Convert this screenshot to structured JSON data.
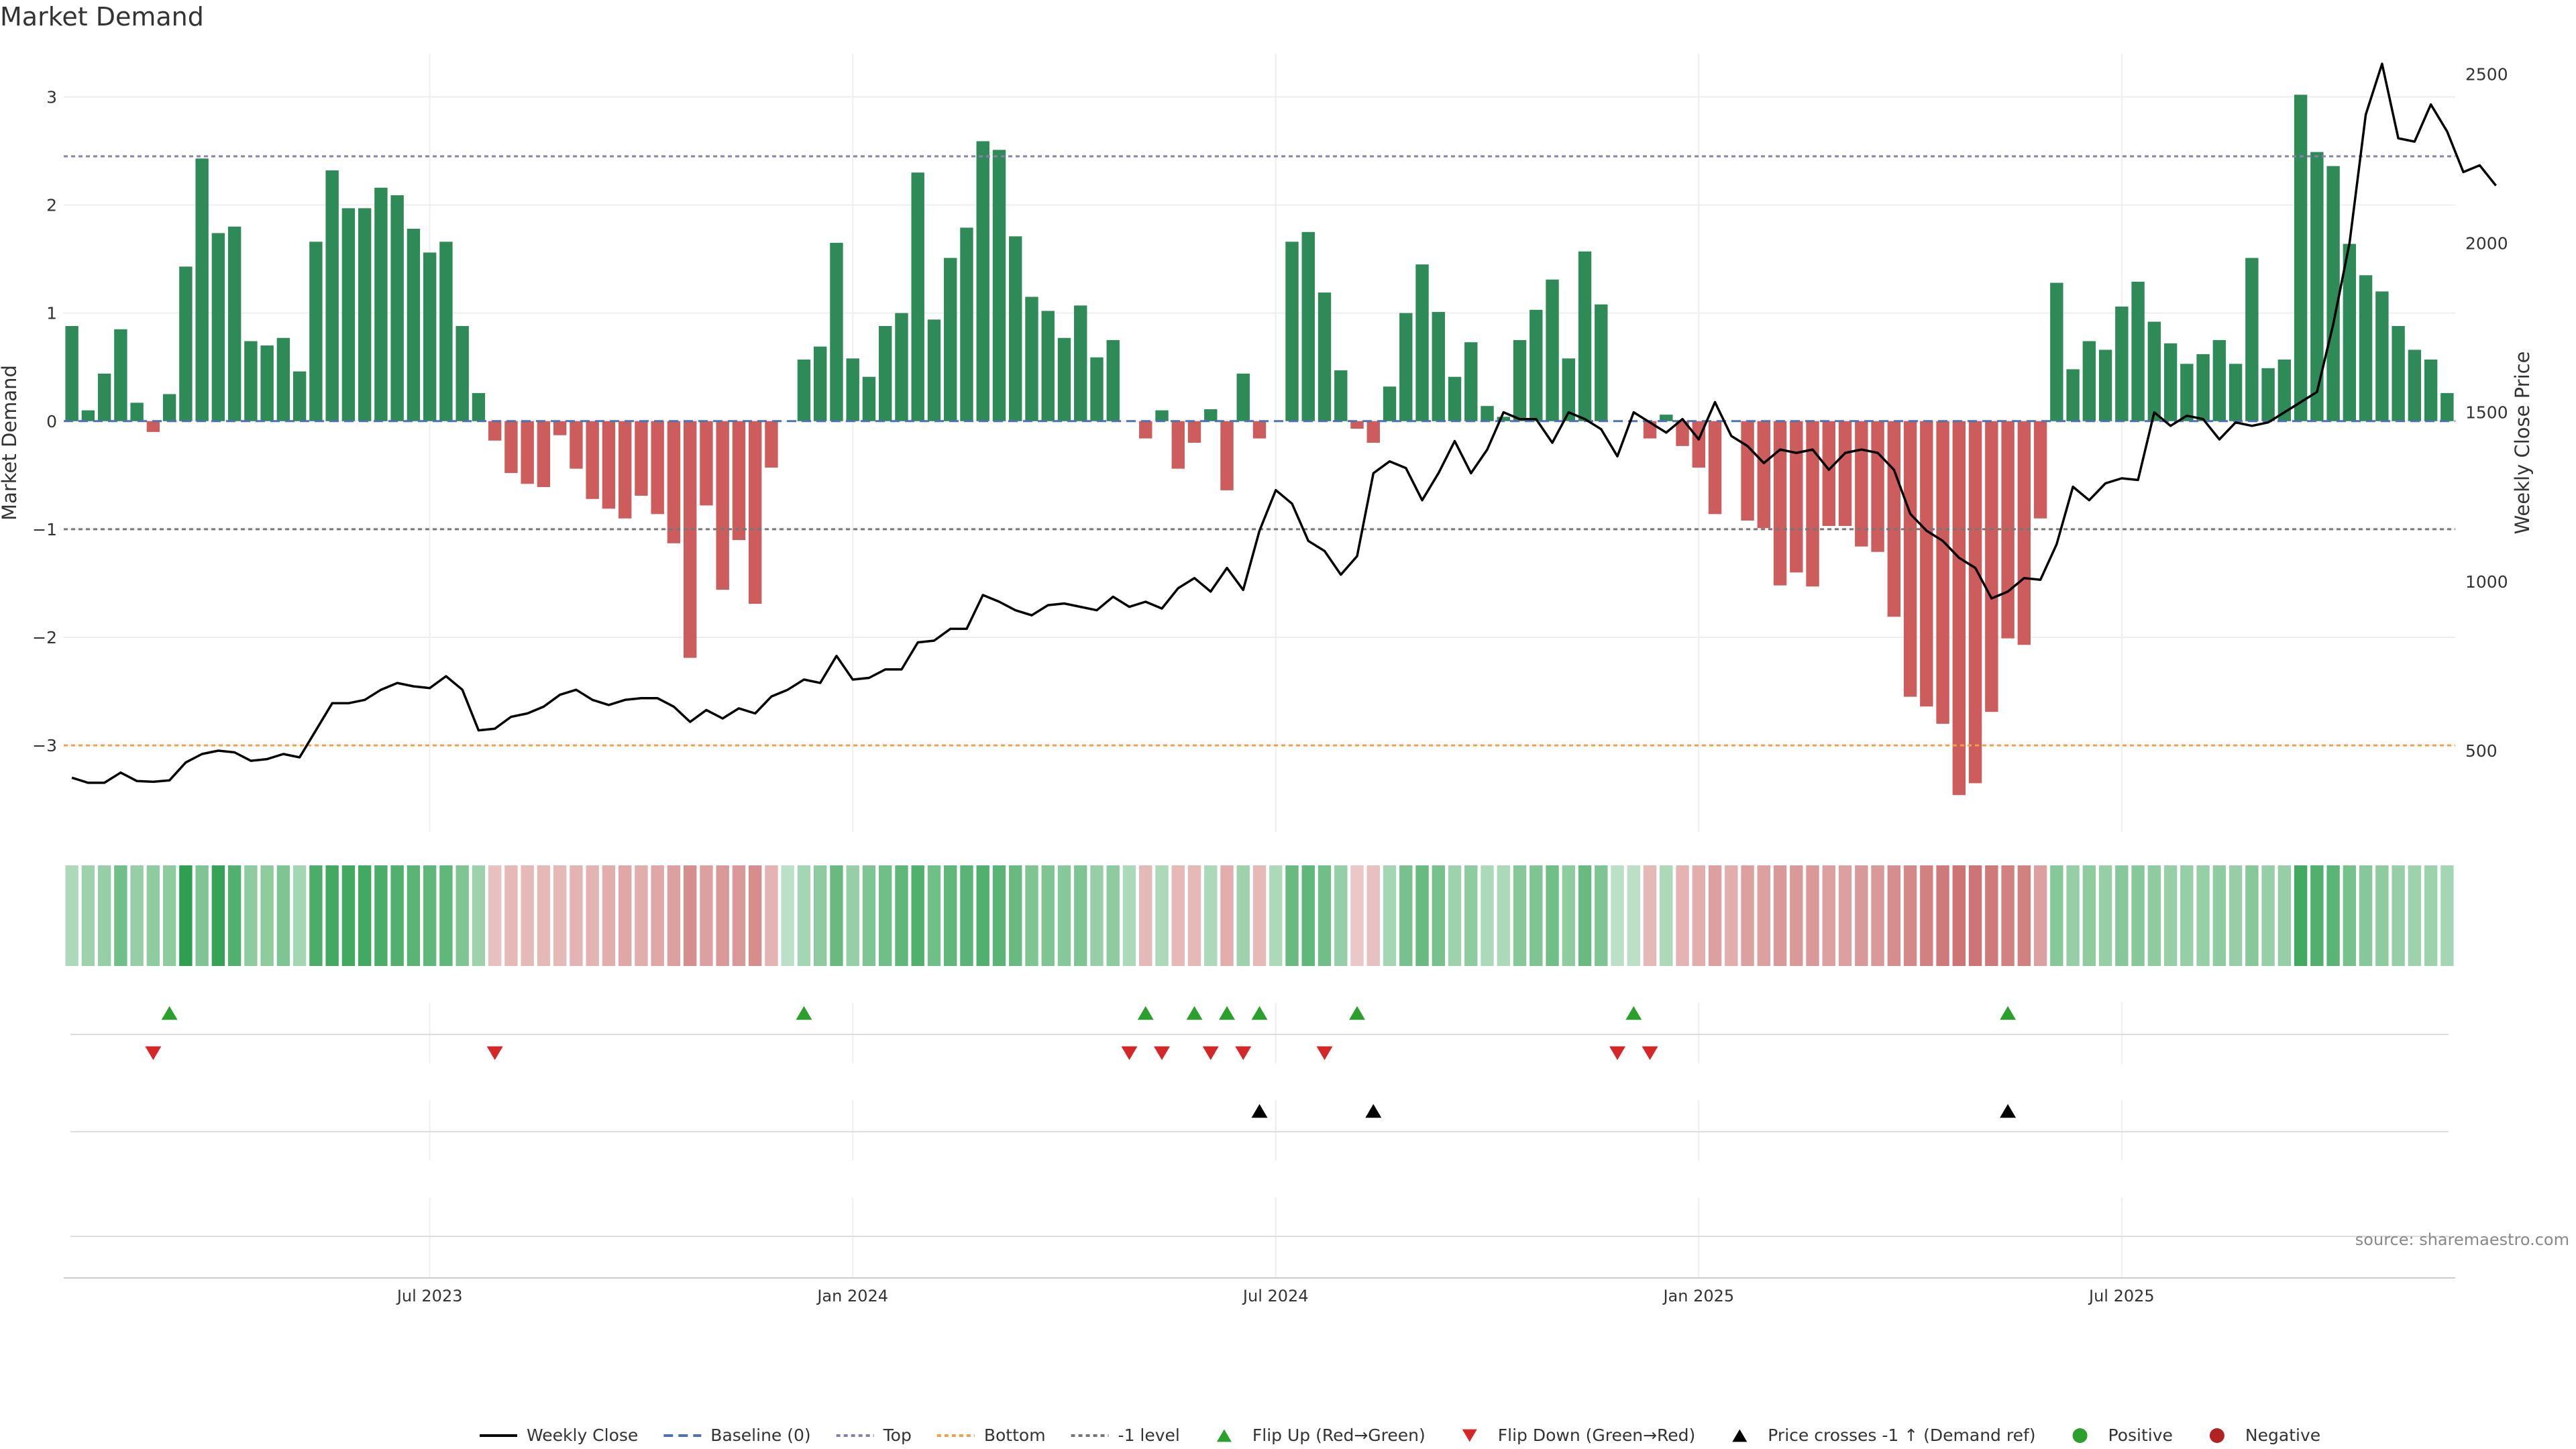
{
  "chart_data": {
    "type": "bar",
    "title": "Market Demand",
    "ylabel_left": "Market Demand",
    "ylabel_right": "Weekly Close Price",
    "source": "source: sharemaestro.com",
    "ylim_left": [
      -3.8,
      3.4
    ],
    "ylim_right": [
      260,
      2560
    ],
    "yticks_left": [
      {
        "value": 3,
        "label": "3"
      },
      {
        "value": 2,
        "label": "2"
      },
      {
        "value": 1,
        "label": "1"
      },
      {
        "value": 0,
        "label": "0"
      },
      {
        "value": -1,
        "label": "−1"
      },
      {
        "value": -2,
        "label": "−2"
      },
      {
        "value": -3,
        "label": "−3"
      }
    ],
    "yticks_right": [
      {
        "value": 2500,
        "label": "2500"
      },
      {
        "value": 2000,
        "label": "2000"
      },
      {
        "value": 1500,
        "label": "1500"
      },
      {
        "value": 1000,
        "label": "1000"
      },
      {
        "value": 500,
        "label": "500"
      }
    ],
    "xticks": [
      {
        "index": 22,
        "label": "Jul 2023"
      },
      {
        "index": 48,
        "label": "Jan 2024"
      },
      {
        "index": 74,
        "label": "Jul 2024"
      },
      {
        "index": 100,
        "label": "Jan 2025"
      },
      {
        "index": 126,
        "label": "Jul 2025"
      }
    ],
    "reference_lines": {
      "top": 2.45,
      "baseline": 0,
      "minus_one": -1,
      "bottom": -3
    },
    "colors": {
      "positive_bar": "#2e8b57",
      "negative_bar": "#cd5c5c",
      "price_line": "#000000",
      "top_line": "#8a7fa8",
      "bottom_line": "#f0a04b",
      "baseline": "#4c72b0",
      "minus_one_line": "#777777",
      "flip_up": "#2ca02c",
      "flip_down": "#d62728",
      "cross": "#000000",
      "positive_dot": "#2ca02c",
      "negative_dot": "#b22222"
    },
    "demand": [
      0.88,
      0.1,
      0.44,
      0.85,
      0.17,
      -0.1,
      0.25,
      1.43,
      2.43,
      1.74,
      1.8,
      0.74,
      0.7,
      0.77,
      0.46,
      1.66,
      2.32,
      1.97,
      1.97,
      2.16,
      2.09,
      1.78,
      1.56,
      1.66,
      0.88,
      0.26,
      -0.18,
      -0.48,
      -0.58,
      -0.61,
      -0.13,
      -0.44,
      -0.72,
      -0.81,
      -0.9,
      -0.69,
      -0.86,
      -1.13,
      -2.19,
      -0.78,
      -1.56,
      -1.1,
      -1.69,
      -0.43,
      0,
      0.57,
      0.69,
      1.65,
      0.58,
      0.41,
      0.88,
      1.0,
      2.3,
      0.94,
      1.51,
      1.79,
      2.59,
      2.51,
      1.71,
      1.15,
      1.02,
      0.77,
      1.07,
      0.59,
      0.75,
      0,
      -0.16,
      0.1,
      -0.44,
      -0.2,
      0.11,
      -0.64,
      0.44,
      -0.16,
      0,
      1.66,
      1.75,
      1.19,
      0.47,
      -0.07,
      -0.2,
      0.32,
      1.0,
      1.45,
      1.01,
      0.41,
      0.73,
      0.14,
      0.04,
      0.75,
      1.03,
      1.31,
      0.58,
      1.57,
      1.08,
      0,
      0,
      -0.16,
      0.06,
      -0.23,
      -0.43,
      -0.86,
      0,
      -0.92,
      -0.99,
      -1.52,
      -1.4,
      -1.53,
      -0.97,
      -0.97,
      -1.16,
      -1.21,
      -1.81,
      -2.55,
      -2.64,
      -2.8,
      -3.46,
      -3.35,
      -2.69,
      -2.01,
      -2.07,
      -0.9,
      1.28,
      0.48,
      0.74,
      0.66,
      1.06,
      1.29,
      0.92,
      0.72,
      0.53,
      0.62,
      0.75,
      0.53,
      1.51,
      0.49,
      0.57,
      3.02,
      2.49,
      2.36,
      1.64,
      1.35,
      1.2,
      0.88,
      0.66,
      0.57,
      0.26
    ],
    "price": [
      420,
      405,
      405,
      435,
      410,
      408,
      412,
      465,
      490,
      500,
      495,
      470,
      475,
      490,
      480,
      560,
      640,
      640,
      650,
      680,
      700,
      690,
      685,
      720,
      680,
      560,
      565,
      600,
      610,
      630,
      665,
      680,
      650,
      635,
      650,
      655,
      655,
      630,
      585,
      620,
      595,
      625,
      610,
      660,
      680,
      710,
      700,
      780,
      710,
      715,
      740,
      740,
      820,
      825,
      860,
      860,
      960,
      940,
      915,
      900,
      930,
      935,
      925,
      915,
      955,
      925,
      940,
      920,
      980,
      1010,
      970,
      1040,
      975,
      1150,
      1270,
      1230,
      1120,
      1090,
      1020,
      1075,
      1320,
      1355,
      1335,
      1240,
      1320,
      1415,
      1320,
      1390,
      1500,
      1480,
      1480,
      1410,
      1500,
      1480,
      1450,
      1370,
      1500,
      1470,
      1440,
      1480,
      1420,
      1530,
      1430,
      1400,
      1350,
      1390,
      1380,
      1390,
      1330,
      1380,
      1390,
      1380,
      1330,
      1200,
      1150,
      1120,
      1070,
      1040,
      950,
      970,
      1010,
      1005,
      1110,
      1280,
      1240,
      1290,
      1305,
      1300,
      1500,
      1460,
      1490,
      1480,
      1420,
      1470,
      1460,
      1470,
      1500,
      1530,
      1560,
      1760,
      2000,
      2380,
      2530,
      2310,
      2300,
      2410,
      2330,
      2210,
      2230,
      2170
    ],
    "strength_levels": [
      0.3,
      0.4,
      0.45,
      0.7,
      0.45,
      0.5,
      0.5,
      1.2,
      0.6,
      1.1,
      0.9,
      0.5,
      0.5,
      0.6,
      0.35,
      0.95,
      1.0,
      1.0,
      1.0,
      0.95,
      0.9,
      0.85,
      0.8,
      0.8,
      0.6,
      0.4,
      -0.25,
      -0.3,
      -0.3,
      -0.3,
      -0.3,
      -0.35,
      -0.35,
      -0.4,
      -0.45,
      -0.4,
      -0.45,
      -0.5,
      -0.65,
      -0.5,
      -0.55,
      -0.55,
      -0.65,
      -0.35,
      0.2,
      0.35,
      0.5,
      0.75,
      0.45,
      0.6,
      0.7,
      0.8,
      0.9,
      0.7,
      0.8,
      0.85,
      0.9,
      0.85,
      0.75,
      0.6,
      0.6,
      0.55,
      0.6,
      0.45,
      0.5,
      0.3,
      -0.3,
      0.3,
      -0.3,
      -0.3,
      0.3,
      -0.4,
      0.4,
      -0.3,
      0.3,
      0.75,
      0.8,
      0.7,
      0.45,
      -0.2,
      -0.25,
      0.35,
      0.65,
      0.75,
      0.65,
      0.4,
      0.5,
      0.3,
      0.3,
      0.55,
      0.6,
      0.7,
      0.5,
      0.75,
      0.6,
      0.2,
      0.2,
      -0.3,
      0.3,
      -0.35,
      -0.4,
      -0.5,
      -0.4,
      -0.5,
      -0.5,
      -0.55,
      -0.55,
      -0.55,
      -0.5,
      -0.5,
      -0.55,
      -0.55,
      -0.65,
      -0.7,
      -0.75,
      -0.8,
      -0.85,
      -0.85,
      -0.8,
      -0.75,
      -0.75,
      -0.5,
      0.55,
      0.45,
      0.5,
      0.45,
      0.55,
      0.55,
      0.5,
      0.45,
      0.45,
      0.45,
      0.5,
      0.45,
      0.55,
      0.45,
      0.45,
      1.0,
      0.9,
      0.85,
      0.65,
      0.55,
      0.5,
      0.45,
      0.4,
      0.4,
      0.35
    ],
    "flip_up_indices": [
      6,
      45,
      66,
      69,
      71,
      73,
      79,
      96,
      119
    ],
    "flip_down_indices": [
      5,
      26,
      65,
      67,
      70,
      72,
      77,
      95,
      97
    ],
    "price_cross_indices": [
      73,
      80,
      119
    ],
    "legend": [
      {
        "key": "weekly_close",
        "label": "Weekly Close"
      },
      {
        "key": "baseline",
        "label": "Baseline (0)"
      },
      {
        "key": "top",
        "label": "Top"
      },
      {
        "key": "bottom",
        "label": "Bottom"
      },
      {
        "key": "minus_one",
        "label": "-1 level"
      },
      {
        "key": "flip_up",
        "label": "Flip Up (Red→Green)"
      },
      {
        "key": "flip_down",
        "label": "Flip Down (Green→Red)"
      },
      {
        "key": "price_cross",
        "label": "Price crosses -1 ↑ (Demand ref)"
      },
      {
        "key": "positive",
        "label": "Positive"
      },
      {
        "key": "negative",
        "label": "Negative"
      }
    ]
  }
}
